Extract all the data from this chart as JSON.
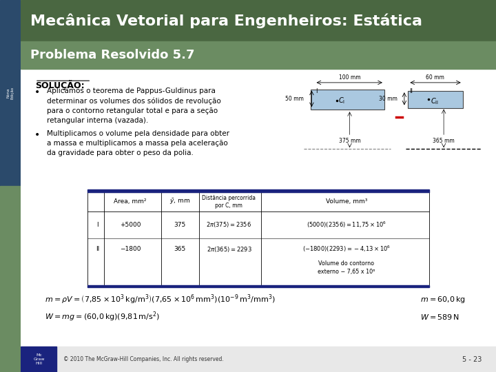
{
  "title": "Mecânica Vetorial para Engenheiros: Estática",
  "subtitle": "Problema Resolvido 5.7",
  "title_bg": "#4a6741",
  "subtitle_bg": "#6b8c62",
  "header_text_color": "#ffffff",
  "body_bg": "#ffffff",
  "sidebar_top_color": "#2b4a6b",
  "sidebar_bottom_color": "#6b8c62",
  "solucao_text": "SOLUÇÃO:",
  "bullet1": "Aplicamos o teorema de Pappus-Guldinus para\ndeterminar os volumes dos sólidos de revolução\npara o contorno retangular total e para a seção\nretangular interna (vazada).",
  "bullet2": "Multiplicamos o volume pela densidade para obter\na massa e multiplicamos a massa pela aceleração\nda gravidade para obter o peso da polia.",
  "footer_text": "© 2010 The McGraw-Hill Companies, Inc. All rights reserved.",
  "page_num": "5 - 23",
  "rect1_color": "#aac8e0",
  "red_dash_color": "#cc0000"
}
